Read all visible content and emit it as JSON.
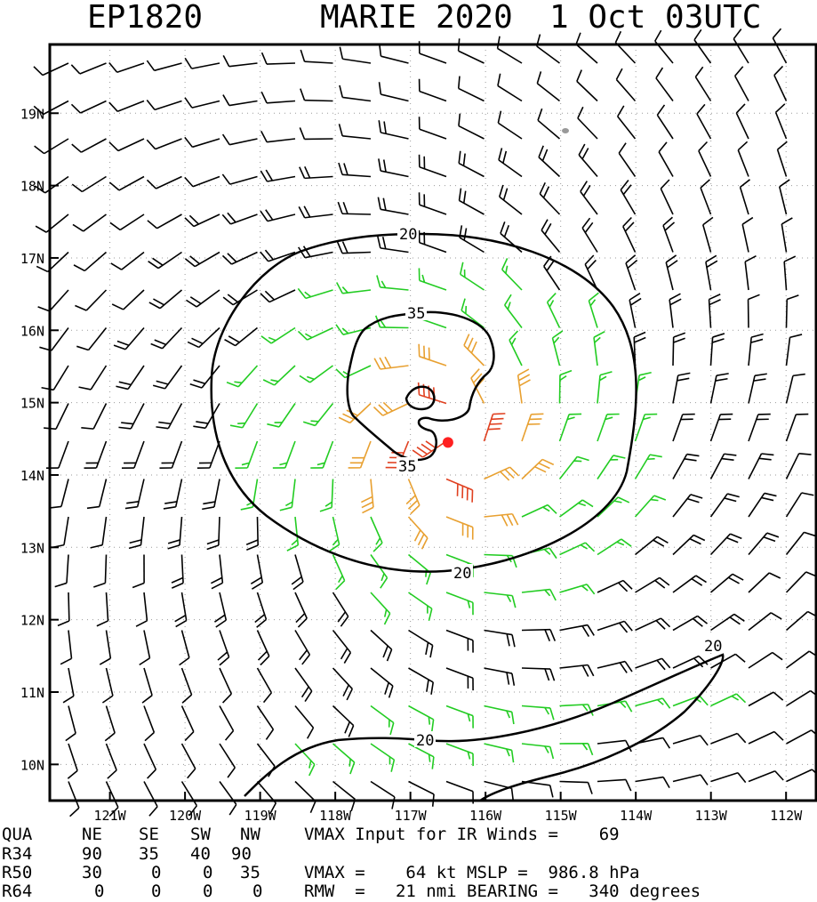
{
  "header": {
    "storm_id": "EP1820",
    "storm_name_year": "MARIE 2020",
    "valid_time": "1 Oct 03UTC"
  },
  "chart_data": {
    "type": "wind-barb-map",
    "title": "MARIE 2020  1 Oct 03UTC",
    "x_ticks": [
      "121W",
      "120W",
      "119W",
      "118W",
      "117W",
      "116W",
      "115W",
      "114W",
      "113W",
      "112W"
    ],
    "y_ticks": [
      "19N",
      "18N",
      "17N",
      "16N",
      "15N",
      "14N",
      "13N",
      "12N",
      "11N",
      "10N"
    ],
    "xlim_lon": [
      -121.8,
      -111.6
    ],
    "ylim_lat": [
      9.5,
      19.95
    ],
    "center": {
      "lon": -116.5,
      "lat": 14.45
    },
    "contours": [
      {
        "label": "20",
        "unit": "kt",
        "ring": "outer"
      },
      {
        "label": "35",
        "unit": "kt",
        "ring": "inner"
      },
      {
        "label": "20",
        "unit": "kt",
        "ring": "southern band"
      }
    ],
    "barb_colors": {
      "lt20": "#000000",
      "20-35": "#22cc22",
      "35-50": "#e8a030",
      "50-64": "#e04020",
      "center": "#ff2020"
    },
    "colors": {
      "contour": "#000000",
      "grid": "#9a9a9a",
      "frame": "#000000",
      "land": "#999999"
    }
  },
  "footer": {
    "table": {
      "columns": [
        "QUA",
        "NE",
        "SE",
        "SW",
        "NW"
      ],
      "rows": [
        {
          "label": "R34",
          "values": [
            "90",
            "35",
            "40",
            "90"
          ]
        },
        {
          "label": "R50",
          "values": [
            "30",
            "0",
            "0",
            "35"
          ]
        },
        {
          "label": "R64",
          "values": [
            "0",
            "0",
            "0",
            "0"
          ]
        }
      ]
    },
    "vmax_input_line": "VMAX Input for IR Winds =    69",
    "vmax_mslp_line": "VMAX =    64 kt MSLP =  986.8 hPa",
    "rmw_line": "RMW  =   21 nmi BEARING =   340 degrees"
  }
}
